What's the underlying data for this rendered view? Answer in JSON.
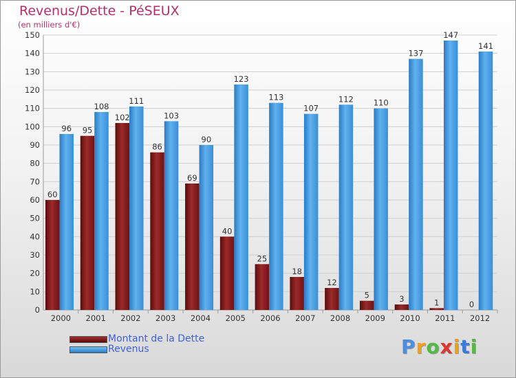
{
  "header": {
    "title": "Revenus/Dette - PéSEUX",
    "subtitle": "(en milliers d'€)"
  },
  "legend": {
    "dette_label": "Montant de la Dette",
    "revenus_label": "Revenus"
  },
  "logo": {
    "text": "Proxiti",
    "letters": [
      "P",
      "r",
      "o",
      "x",
      "i",
      "t",
      "i"
    ],
    "colors": [
      "#4a8fe0",
      "#f29f1b",
      "#56b848",
      "#e0342e",
      "#f29f1b",
      "#3a7bd5",
      "#56b848"
    ]
  },
  "colors": {
    "dette": "#8b1a1a",
    "revenus": "#4fa3e6",
    "axis_text": "#333333",
    "grid": "#cfcfcf"
  },
  "chart_data": {
    "type": "bar",
    "title": "Revenus/Dette - PéSEUX",
    "subtitle": "(en milliers d'€)",
    "xlabel": "",
    "ylabel": "",
    "ylim": [
      0,
      150
    ],
    "yticks": [
      0,
      10,
      20,
      30,
      40,
      50,
      60,
      70,
      80,
      90,
      100,
      110,
      120,
      130,
      140,
      150
    ],
    "grid": true,
    "legend_position": "bottom-left",
    "categories": [
      "2000",
      "2001",
      "2002",
      "2003",
      "2004",
      "2005",
      "2006",
      "2007",
      "2008",
      "2009",
      "2010",
      "2011",
      "2012"
    ],
    "series": [
      {
        "name": "Montant de la Dette",
        "values": [
          60,
          95,
          102,
          86,
          69,
          40,
          25,
          18,
          12,
          5,
          3,
          1,
          0
        ]
      },
      {
        "name": "Revenus",
        "values": [
          96,
          108,
          111,
          103,
          90,
          123,
          113,
          107,
          112,
          110,
          137,
          147,
          141
        ]
      }
    ]
  }
}
